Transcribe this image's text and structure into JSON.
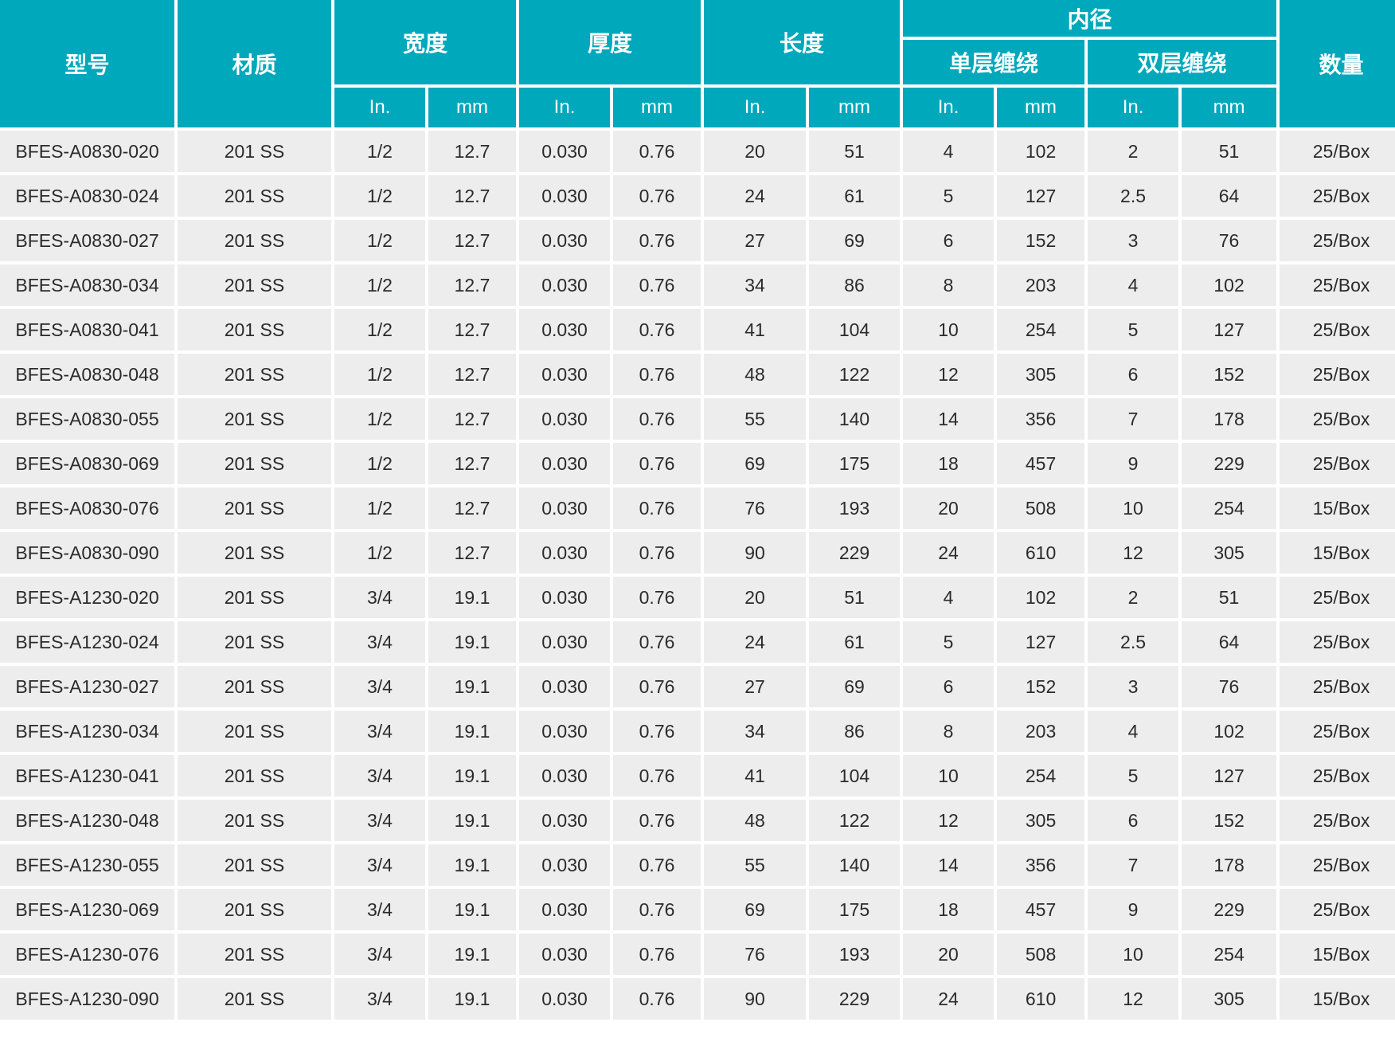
{
  "table": {
    "header": {
      "model": "型号",
      "material": "材质",
      "width": "宽度",
      "thickness": "厚度",
      "length": "长度",
      "inner_diameter": "内径",
      "single_wrap": "单层缠绕",
      "double_wrap": "双层缠绕",
      "quantity": "数量",
      "unit_in": "In.",
      "unit_mm": "mm"
    },
    "colors": {
      "header_teal": "#00a8bc",
      "row_gray": "#ededed",
      "grid_white": "#ffffff",
      "text_dark": "#2b2b2b"
    },
    "columns_keys": [
      "model",
      "material",
      "width-in",
      "width-mm",
      "thickness-in",
      "thickness-mm",
      "length-in",
      "length-mm",
      "single-wrap-in",
      "single-wrap-mm",
      "double-wrap-in",
      "double-wrap-mm",
      "quantity"
    ],
    "rows": [
      [
        "BFES-A0830-020",
        "201 SS",
        "1/2",
        "12.7",
        "0.030",
        "0.76",
        "20",
        "51",
        "4",
        "102",
        "2",
        "51",
        "25/Box"
      ],
      [
        "BFES-A0830-024",
        "201 SS",
        "1/2",
        "12.7",
        "0.030",
        "0.76",
        "24",
        "61",
        "5",
        "127",
        "2.5",
        "64",
        "25/Box"
      ],
      [
        "BFES-A0830-027",
        "201 SS",
        "1/2",
        "12.7",
        "0.030",
        "0.76",
        "27",
        "69",
        "6",
        "152",
        "3",
        "76",
        "25/Box"
      ],
      [
        "BFES-A0830-034",
        "201 SS",
        "1/2",
        "12.7",
        "0.030",
        "0.76",
        "34",
        "86",
        "8",
        "203",
        "4",
        "102",
        "25/Box"
      ],
      [
        "BFES-A0830-041",
        "201 SS",
        "1/2",
        "12.7",
        "0.030",
        "0.76",
        "41",
        "104",
        "10",
        "254",
        "5",
        "127",
        "25/Box"
      ],
      [
        "BFES-A0830-048",
        "201 SS",
        "1/2",
        "12.7",
        "0.030",
        "0.76",
        "48",
        "122",
        "12",
        "305",
        "6",
        "152",
        "25/Box"
      ],
      [
        "BFES-A0830-055",
        "201 SS",
        "1/2",
        "12.7",
        "0.030",
        "0.76",
        "55",
        "140",
        "14",
        "356",
        "7",
        "178",
        "25/Box"
      ],
      [
        "BFES-A0830-069",
        "201 SS",
        "1/2",
        "12.7",
        "0.030",
        "0.76",
        "69",
        "175",
        "18",
        "457",
        "9",
        "229",
        "25/Box"
      ],
      [
        "BFES-A0830-076",
        "201 SS",
        "1/2",
        "12.7",
        "0.030",
        "0.76",
        "76",
        "193",
        "20",
        "508",
        "10",
        "254",
        "15/Box"
      ],
      [
        "BFES-A0830-090",
        "201 SS",
        "1/2",
        "12.7",
        "0.030",
        "0.76",
        "90",
        "229",
        "24",
        "610",
        "12",
        "305",
        "15/Box"
      ],
      [
        "BFES-A1230-020",
        "201 SS",
        "3/4",
        "19.1",
        "0.030",
        "0.76",
        "20",
        "51",
        "4",
        "102",
        "2",
        "51",
        "25/Box"
      ],
      [
        "BFES-A1230-024",
        "201 SS",
        "3/4",
        "19.1",
        "0.030",
        "0.76",
        "24",
        "61",
        "5",
        "127",
        "2.5",
        "64",
        "25/Box"
      ],
      [
        "BFES-A1230-027",
        "201 SS",
        "3/4",
        "19.1",
        "0.030",
        "0.76",
        "27",
        "69",
        "6",
        "152",
        "3",
        "76",
        "25/Box"
      ],
      [
        "BFES-A1230-034",
        "201 SS",
        "3/4",
        "19.1",
        "0.030",
        "0.76",
        "34",
        "86",
        "8",
        "203",
        "4",
        "102",
        "25/Box"
      ],
      [
        "BFES-A1230-041",
        "201 SS",
        "3/4",
        "19.1",
        "0.030",
        "0.76",
        "41",
        "104",
        "10",
        "254",
        "5",
        "127",
        "25/Box"
      ],
      [
        "BFES-A1230-048",
        "201 SS",
        "3/4",
        "19.1",
        "0.030",
        "0.76",
        "48",
        "122",
        "12",
        "305",
        "6",
        "152",
        "25/Box"
      ],
      [
        "BFES-A1230-055",
        "201 SS",
        "3/4",
        "19.1",
        "0.030",
        "0.76",
        "55",
        "140",
        "14",
        "356",
        "7",
        "178",
        "25/Box"
      ],
      [
        "BFES-A1230-069",
        "201 SS",
        "3/4",
        "19.1",
        "0.030",
        "0.76",
        "69",
        "175",
        "18",
        "457",
        "9",
        "229",
        "25/Box"
      ],
      [
        "BFES-A1230-076",
        "201 SS",
        "3/4",
        "19.1",
        "0.030",
        "0.76",
        "76",
        "193",
        "20",
        "508",
        "10",
        "254",
        "15/Box"
      ],
      [
        "BFES-A1230-090",
        "201 SS",
        "3/4",
        "19.1",
        "0.030",
        "0.76",
        "90",
        "229",
        "24",
        "610",
        "12",
        "305",
        "15/Box"
      ]
    ]
  }
}
